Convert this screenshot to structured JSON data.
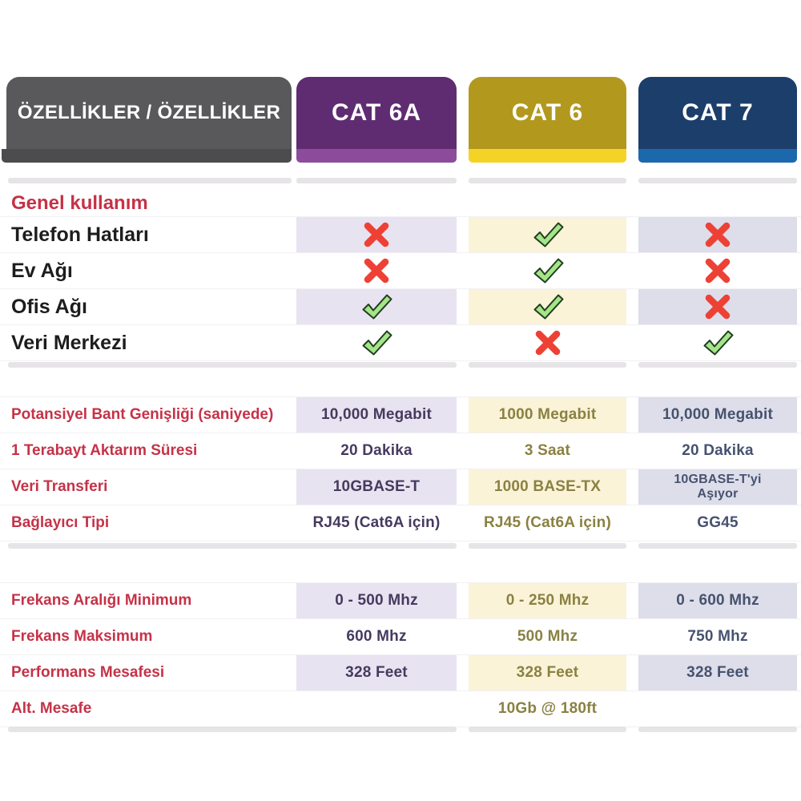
{
  "header": {
    "feature_column_title": "ÖZELLİKLER / ÖZELLİKLER",
    "feature_tab_color": "#59595b",
    "feature_tab_accent": "#4c4c4e",
    "columns": [
      {
        "label": "CAT 6A",
        "color": "#5f2c72",
        "accent": "#8d4c9b",
        "tint": "#e7e3f0",
        "value_color": "#463a5f"
      },
      {
        "label": "CAT 6",
        "color": "#b2991e",
        "accent": "#f5d326",
        "tint": "#faf3d8",
        "value_color": "#8a8142"
      },
      {
        "label": "CAT 7",
        "color": "#1c3e6b",
        "accent": "#1b69ac",
        "tint": "#dddee9",
        "value_color": "#475270"
      }
    ]
  },
  "usage": {
    "title": "Genel kullanım",
    "title_color": "#c53247",
    "check_color": "#a4e589",
    "x_color": "#ee4135",
    "rows": [
      {
        "label": "Telefon Hatları",
        "marks": [
          "x",
          "check",
          "x"
        ]
      },
      {
        "label": "Ev Ağı",
        "marks": [
          "x",
          "check",
          "x"
        ]
      },
      {
        "label": "Ofis Ağı",
        "marks": [
          "check",
          "check",
          "x"
        ]
      },
      {
        "label": "Veri Merkezi",
        "marks": [
          "check",
          "x",
          "check"
        ]
      }
    ]
  },
  "specs": {
    "rows": [
      {
        "label": "Potansiyel Bant Genişliği (saniyede)",
        "values": [
          "10,000 Megabit",
          "1000 Megabit",
          "10,000 Megabit"
        ]
      },
      {
        "label": "1 Terabayt Aktarım Süresi",
        "values": [
          "20 Dakika",
          "3 Saat",
          "20 Dakika"
        ]
      },
      {
        "label": "Veri Transferi",
        "values": [
          "10GBASE-T",
          "1000 BASE-TX",
          "10GBASE-T'yi Aşıyor"
        ]
      },
      {
        "label": "Bağlayıcı Tipi",
        "values": [
          "RJ45 (Cat6A için)",
          "RJ45 (Cat6A için)",
          "GG45"
        ]
      }
    ]
  },
  "frequency": {
    "rows": [
      {
        "label": "Frekans Aralığı Minimum",
        "values": [
          "0 - 500 Mhz",
          "0 - 250 Mhz",
          "0 - 600 Mhz"
        ]
      },
      {
        "label": "Frekans Maksimum",
        "values": [
          "600 Mhz",
          "500 Mhz",
          "750 Mhz"
        ]
      },
      {
        "label": "Performans Mesafesi",
        "values": [
          "328 Feet",
          "328 Feet",
          "328 Feet"
        ]
      },
      {
        "label": "Alt. Mesafe",
        "values": [
          "",
          "10Gb @ 180ft",
          ""
        ]
      }
    ]
  }
}
